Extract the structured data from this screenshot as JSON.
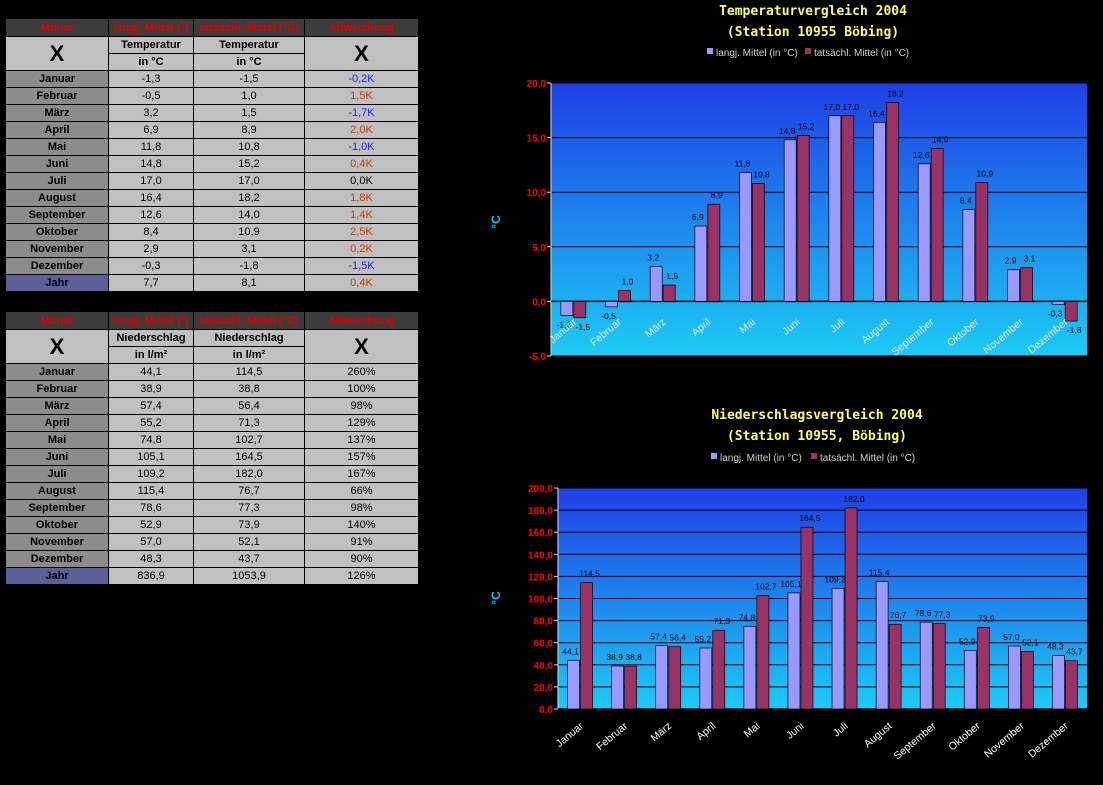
{
  "colors": {
    "series1": "#9999ff",
    "series2": "#993366",
    "title": "#ffff66",
    "axis_red": "#ff0000",
    "axis_cyan": "#00ccff",
    "pos": "#c83a00",
    "neg": "#2020ff"
  },
  "temp_table": {
    "headers": [
      "Monat",
      "langj. Mittel (°)",
      "tatsächl. Mittel (°C)",
      "Abweichung"
    ],
    "sub1": [
      "X",
      "Temperatur",
      "Temperatur",
      "X"
    ],
    "sub2": [
      "in °C",
      "in °C"
    ],
    "rows": [
      [
        "Januar",
        "-1,3",
        "-1,5",
        "-0,2K",
        "neg"
      ],
      [
        "Februar",
        "-0,5",
        "1,0",
        "1,5K",
        "pos"
      ],
      [
        "März",
        "3,2",
        "1,5",
        "-1,7K",
        "neg"
      ],
      [
        "April",
        "6,9",
        "8,9",
        "2,0K",
        "pos"
      ],
      [
        "Mai",
        "11,8",
        "10,8",
        "-1,0K",
        "neg"
      ],
      [
        "Juni",
        "14,8",
        "15,2",
        "0,4K",
        "pos"
      ],
      [
        "Juli",
        "17,0",
        "17,0",
        "0,0K",
        "zero"
      ],
      [
        "August",
        "16,4",
        "18,2",
        "1,8K",
        "pos"
      ],
      [
        "September",
        "12,6",
        "14,0",
        "1,4K",
        "pos"
      ],
      [
        "Oktober",
        "8,4",
        "10,9",
        "2,5K",
        "pos"
      ],
      [
        "November",
        "2,9",
        "3,1",
        "0,2K",
        "pos"
      ],
      [
        "Dezember",
        "-0,3",
        "-1,8",
        "-1,5K",
        "neg"
      ]
    ],
    "total": [
      "Jahr",
      "7,7",
      "8,1",
      "0,4K",
      "pos"
    ]
  },
  "prec_table": {
    "headers": [
      "Monat",
      "langj. Mittel (°)",
      "tatsächl. Mittel (°C)",
      "Abweichung"
    ],
    "sub1": [
      "X",
      "Niederschlag",
      "Niederschlag",
      "X"
    ],
    "sub2": [
      "in l/m²",
      "in l/m²"
    ],
    "rows": [
      [
        "Januar",
        "44,1",
        "114,5",
        "260%"
      ],
      [
        "Februar",
        "38,9",
        "38,8",
        "100%"
      ],
      [
        "März",
        "57,4",
        "56,4",
        "98%"
      ],
      [
        "April",
        "55,2",
        "71,3",
        "129%"
      ],
      [
        "Mai",
        "74,8",
        "102,7",
        "137%"
      ],
      [
        "Juni",
        "105,1",
        "164,5",
        "157%"
      ],
      [
        "Juli",
        "109,2",
        "182,0",
        "167%"
      ],
      [
        "August",
        "115,4",
        "76,7",
        "66%"
      ],
      [
        "September",
        "78,6",
        "77,3",
        "98%"
      ],
      [
        "Oktober",
        "52,9",
        "73,9",
        "140%"
      ],
      [
        "November",
        "57,0",
        "52,1",
        "91%"
      ],
      [
        "Dezember",
        "48,3",
        "43,7",
        "90%"
      ]
    ],
    "total": [
      "Jahr",
      "836,9",
      "1053,9",
      "126%"
    ]
  },
  "chart_data": [
    {
      "type": "bar",
      "title": "Temperaturvergleich 2004",
      "subtitle": "(Station 10955 Böbing)",
      "ylabel": "°C",
      "ylim": [
        -5,
        20
      ],
      "yticks": [
        "-5,0",
        "0,0",
        "5,0",
        "10,0",
        "15,0",
        "20,0"
      ],
      "legend_position": "top",
      "grid": true,
      "categories": [
        "Januar",
        "Februar",
        "März",
        "April",
        "Mai",
        "Juni",
        "Juli",
        "August",
        "September",
        "Oktober",
        "November",
        "Dezember"
      ],
      "series": [
        {
          "name": "langj. Mittel (in °C)",
          "values": [
            -1.3,
            -0.5,
            3.2,
            6.9,
            11.8,
            14.8,
            17.0,
            16.4,
            12.6,
            8.4,
            2.9,
            -0.3
          ],
          "labels": [
            "-1,3",
            "-0,5",
            "3,2",
            "6,9",
            "11,8",
            "14,8",
            "17,0",
            "16,4",
            "12,6",
            "8,4",
            "2,9",
            "-0,3"
          ]
        },
        {
          "name": "tatsächl. Mittel (in °C)",
          "values": [
            -1.5,
            1.0,
            1.5,
            8.9,
            10.8,
            15.2,
            17.0,
            18.2,
            14.0,
            10.9,
            3.1,
            -1.8
          ],
          "labels": [
            "-1,5",
            "1,0",
            "1,5",
            "8,9",
            "10,8",
            "15,2",
            "17,0",
            "18,2",
            "14,0",
            "10,9",
            "3,1",
            "-1,8"
          ]
        }
      ]
    },
    {
      "type": "bar",
      "title": "Niederschlagsvergleich 2004",
      "subtitle": "(Station 10955, Böbing)",
      "ylabel": "°C",
      "ylim": [
        0,
        200
      ],
      "yticks": [
        "0,0",
        "20,0",
        "40,0",
        "60,0",
        "80,0",
        "100,0",
        "120,0",
        "140,0",
        "160,0",
        "180,0",
        "200,0"
      ],
      "legend_position": "top",
      "grid": true,
      "categories": [
        "Januar",
        "Februar",
        "März",
        "April",
        "Mai",
        "Juni",
        "Juli",
        "August",
        "September",
        "Oktober",
        "November",
        "Dezember"
      ],
      "series": [
        {
          "name": "langj. Mittel (in °C)",
          "values": [
            44.1,
            38.9,
            57.4,
            55.2,
            74.8,
            105.1,
            109.2,
            115.4,
            78.6,
            52.9,
            57.0,
            48.3
          ],
          "labels": [
            "44,1",
            "38,9",
            "57,4",
            "55,2",
            "74,8",
            "105,1",
            "109,2",
            "115,4",
            "78,6",
            "52,9",
            "57,0",
            "48,3"
          ]
        },
        {
          "name": "tatsächl. Mittel (in °C)",
          "values": [
            114.5,
            38.8,
            56.4,
            71.3,
            102.7,
            164.5,
            182.0,
            76.7,
            77.3,
            73.9,
            52.1,
            43.7
          ],
          "labels": [
            "114,5",
            "38,8",
            "56,4",
            "71,3",
            "102,7",
            "164,5",
            "182,0",
            "76,7",
            "77,3",
            "73,9",
            "52,1",
            "43,7"
          ]
        }
      ]
    }
  ]
}
